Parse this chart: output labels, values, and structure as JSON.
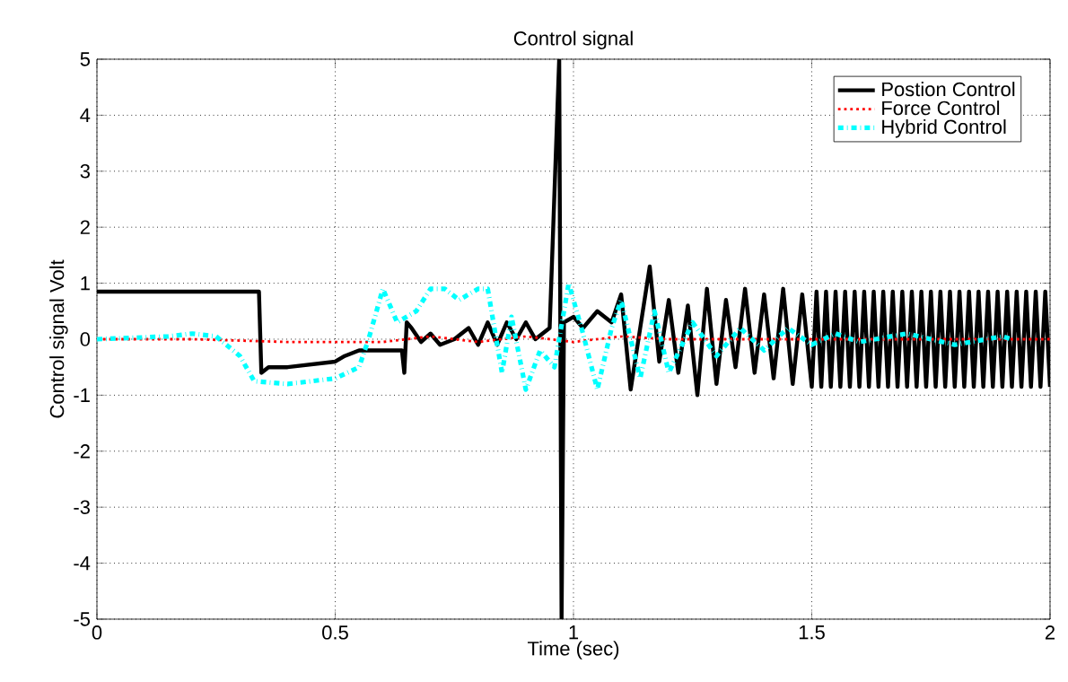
{
  "chart_data": {
    "type": "line",
    "title": "Control signal",
    "xlabel": "Time (sec)",
    "ylabel": "Control signal Volt",
    "xlim": [
      0,
      2
    ],
    "ylim": [
      -5,
      5
    ],
    "xticks": [
      0,
      0.5,
      1,
      1.5,
      2
    ],
    "yticks": [
      -5,
      -4,
      -3,
      -2,
      -1,
      0,
      1,
      2,
      3,
      4,
      5
    ],
    "grid": true,
    "legend": "top right",
    "series": [
      {
        "name": "Postion Control",
        "color": "#000000",
        "line_style": "solid",
        "x": [
          0,
          0.34,
          0.345,
          0.36,
          0.4,
          0.45,
          0.5,
          0.52,
          0.55,
          0.6,
          0.64,
          0.645,
          0.65,
          0.66,
          0.68,
          0.7,
          0.72,
          0.75,
          0.78,
          0.8,
          0.82,
          0.84,
          0.86,
          0.88,
          0.9,
          0.92,
          0.95,
          0.97,
          0.975,
          0.98,
          1.0,
          1.02,
          1.05,
          1.08,
          1.1,
          1.12,
          1.14,
          1.16,
          1.18,
          1.2,
          1.22,
          1.24,
          1.26,
          1.28,
          1.3,
          1.32,
          1.34,
          1.36,
          1.38,
          1.4,
          1.42,
          1.44,
          1.46,
          1.48,
          1.5,
          1.51,
          1.52,
          1.53,
          1.54,
          1.55,
          1.56,
          1.57,
          1.58,
          1.59,
          1.6,
          1.61,
          1.62,
          1.63,
          1.64,
          1.65,
          1.66,
          1.67,
          1.68,
          1.69,
          1.7,
          1.71,
          1.72,
          1.73,
          1.74,
          1.75,
          1.76,
          1.77,
          1.78,
          1.79,
          1.8,
          1.81,
          1.82,
          1.83,
          1.84,
          1.85,
          1.86,
          1.87,
          1.88,
          1.89,
          1.9,
          1.91,
          1.92,
          1.93,
          1.94,
          1.95,
          1.96,
          1.97,
          1.98,
          1.99,
          2.0
        ],
        "values": [
          0.85,
          0.85,
          -0.6,
          -0.5,
          -0.5,
          -0.45,
          -0.4,
          -0.3,
          -0.2,
          -0.2,
          -0.2,
          -0.6,
          0.3,
          0.2,
          -0.05,
          0.1,
          -0.1,
          0,
          0.2,
          -0.1,
          0.3,
          -0.1,
          0.3,
          0,
          0.3,
          0,
          0.2,
          5,
          -5,
          0.3,
          0.4,
          0.2,
          0.5,
          0.3,
          0.8,
          -0.9,
          0.2,
          1.3,
          -0.4,
          0.7,
          -0.6,
          0.6,
          -1,
          0.9,
          -0.8,
          0.7,
          -0.5,
          0.9,
          -0.6,
          0.8,
          -0.7,
          0.9,
          -0.8,
          0.8,
          -0.85,
          0.85,
          -0.85,
          0.85,
          -0.85,
          0.85,
          -0.85,
          0.85,
          -0.85,
          0.85,
          -0.85,
          0.85,
          -0.85,
          0.85,
          -0.85,
          0.85,
          -0.85,
          0.85,
          -0.85,
          0.85,
          -0.85,
          0.85,
          -0.85,
          0.85,
          -0.85,
          0.85,
          -0.85,
          0.85,
          -0.85,
          0.85,
          -0.85,
          0.85,
          -0.85,
          0.85,
          -0.85,
          0.85,
          -0.85,
          0.85,
          -0.85,
          0.85,
          -0.85,
          0.85,
          -0.85,
          0.85,
          -0.85,
          0.85,
          -0.85,
          0.85,
          -0.85,
          0.85,
          -0.85
        ]
      },
      {
        "name": "Force Control",
        "color": "#ff0000",
        "line_style": "dotted",
        "x": [
          0,
          0.2,
          0.4,
          0.6,
          0.7,
          0.8,
          0.9,
          1.0,
          1.1,
          1.2,
          1.4,
          1.6,
          1.8,
          2.0
        ],
        "values": [
          0,
          0,
          -0.05,
          -0.05,
          0.05,
          -0.05,
          0.05,
          -0.05,
          0.05,
          0,
          0,
          0,
          0,
          0
        ]
      },
      {
        "name": "Hybrid Control",
        "color": "#00ffff",
        "line_style": "dashed",
        "x": [
          0,
          0.15,
          0.2,
          0.25,
          0.3,
          0.33,
          0.4,
          0.45,
          0.5,
          0.55,
          0.57,
          0.6,
          0.63,
          0.67,
          0.7,
          0.73,
          0.76,
          0.8,
          0.82,
          0.85,
          0.87,
          0.9,
          0.93,
          0.96,
          0.99,
          1.02,
          1.05,
          1.08,
          1.1,
          1.14,
          1.17,
          1.2,
          1.25,
          1.3,
          1.35,
          1.4,
          1.45,
          1.5,
          1.55,
          1.6,
          1.7,
          1.8,
          1.9,
          1.92
        ],
        "values": [
          0,
          0.05,
          0.1,
          0.05,
          -0.3,
          -0.75,
          -0.8,
          -0.75,
          -0.7,
          -0.5,
          0,
          0.9,
          0.3,
          0.5,
          0.9,
          0.9,
          0.7,
          0.9,
          0.9,
          -0.6,
          0.4,
          -0.9,
          -0.2,
          -0.5,
          1,
          0.1,
          -0.9,
          0.2,
          0.7,
          -0.7,
          0.5,
          -0.6,
          0.3,
          -0.3,
          0.2,
          -0.2,
          0.2,
          -0.1,
          0.1,
          -0.05,
          0.1,
          -0.1,
          0.05,
          0
        ]
      }
    ]
  }
}
